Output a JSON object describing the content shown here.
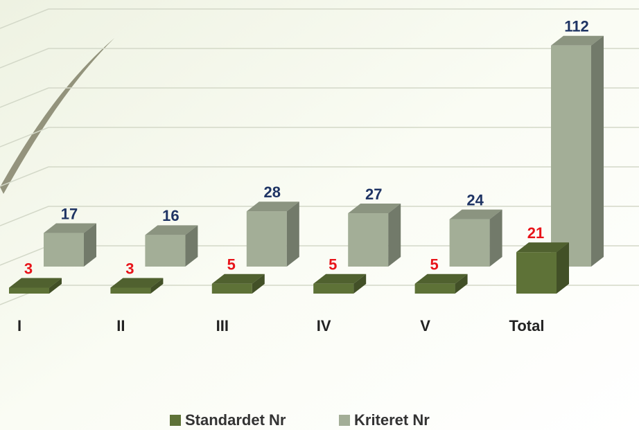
{
  "chart_data": {
    "type": "bar3d",
    "categories": [
      "I",
      "II",
      "III",
      "IV",
      "V",
      "Total"
    ],
    "series": [
      {
        "name": "Standardet Nr",
        "color": "#5e7237",
        "label_color": "#e8141a",
        "values": [
          3,
          3,
          5,
          5,
          5,
          21
        ]
      },
      {
        "name": "Kriteret Nr",
        "color": "#a3ae97",
        "label_color": "#1f3464",
        "values": [
          17,
          16,
          28,
          27,
          24,
          112
        ]
      }
    ],
    "ylim": [
      0,
      140
    ],
    "yticks": [
      0,
      20,
      40,
      60,
      80,
      100,
      120,
      140
    ],
    "grid": true,
    "legend": "bottom"
  }
}
